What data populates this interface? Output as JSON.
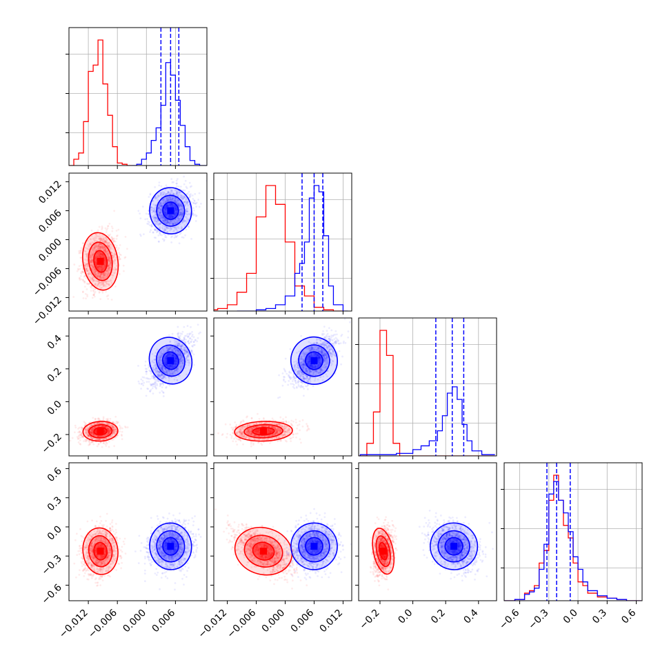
{
  "chart_data": {
    "type": "corner",
    "parameters": 4,
    "colors": {
      "red_series": "#ff0000",
      "blue_series": "#0000ff"
    },
    "series": [
      {
        "color": "#ff0000",
        "means": [
          -0.0095,
          -0.0045,
          -0.18,
          -0.25
        ],
        "sigmas": [
          0.0015,
          0.0025,
          0.025,
          0.1
        ],
        "histograms": [
          {
            "edges": [
              -0.016,
              -0.015,
              -0.014,
              -0.013,
              -0.012,
              -0.011,
              -0.01,
              -0.009,
              -0.008,
              -0.007,
              -0.006,
              -0.005,
              -0.004,
              -0.003
            ],
            "counts": [
              0,
              0.05,
              0.1,
              0.35,
              0.75,
              0.8,
              1.0,
              0.65,
              0.4,
              0.15,
              0.02,
              0.01,
              0
            ]
          },
          {
            "edges": [
              -0.018,
              -0.016,
              -0.014,
              -0.012,
              -0.01,
              -0.008,
              -0.006,
              -0.004,
              -0.002,
              0.0,
              0.002,
              0.004,
              0.006,
              0.008,
              0.01,
              0.012
            ],
            "counts": [
              0,
              0.01,
              0.02,
              0.05,
              0.15,
              0.3,
              0.75,
              1.0,
              0.85,
              0.55,
              0.2,
              0.12,
              0.03,
              0.01,
              0
            ]
          },
          {
            "edges": [
              -0.42,
              -0.28,
              -0.24,
              -0.2,
              -0.16,
              -0.12,
              -0.08,
              0.5
            ],
            "counts": [
              0,
              0.1,
              0.35,
              1.0,
              0.8,
              0.1,
              0
            ]
          },
          {
            "edges": [
              -0.8,
              -0.65,
              -0.55,
              -0.5,
              -0.45,
              -0.4,
              -0.35,
              -0.3,
              -0.25,
              -0.2,
              -0.15,
              -0.1,
              -0.05,
              0.0,
              0.05,
              0.1,
              0.2,
              0.3,
              0.4,
              0.5,
              0.65
            ],
            "counts": [
              0,
              0.01,
              0.06,
              0.08,
              0.12,
              0.3,
              0.4,
              0.8,
              1.0,
              0.8,
              0.6,
              0.5,
              0.3,
              0.15,
              0.12,
              0.06,
              0.03,
              0.02,
              0.01,
              0
            ]
          }
        ]
      },
      {
        "color": "#0000ff",
        "means": [
          0.005,
          0.006,
          0.25,
          -0.2
        ],
        "sigmas": [
          0.0018,
          0.002,
          0.06,
          0.1
        ],
        "quantiles": [
          [
            0.003,
            0.005,
            0.0067
          ],
          [
            0.0035,
            0.006,
            0.0078
          ],
          [
            0.14,
            0.24,
            0.31
          ],
          [
            -0.32,
            -0.22,
            -0.08
          ]
        ],
        "histograms": [
          {
            "edges": [
              -0.003,
              -0.002,
              -0.001,
              0.0,
              0.001,
              0.002,
              0.003,
              0.004,
              0.005,
              0.006,
              0.007,
              0.008,
              0.009,
              0.01,
              0.011,
              0.0125
            ],
            "counts": [
              0,
              0.01,
              0.05,
              0.1,
              0.2,
              0.3,
              0.48,
              0.82,
              0.72,
              0.52,
              0.32,
              0.15,
              0.04,
              0.01,
              0
            ]
          },
          {
            "edges": [
              -0.01,
              -0.006,
              -0.004,
              -0.002,
              0.0,
              0.002,
              0.003,
              0.004,
              0.005,
              0.006,
              0.007,
              0.008,
              0.009,
              0.01,
              0.012,
              0.013
            ],
            "counts": [
              0,
              0.01,
              0.02,
              0.05,
              0.12,
              0.3,
              0.38,
              0.55,
              0.9,
              1.0,
              0.95,
              0.6,
              0.2,
              0.05,
              0
            ]
          },
          {
            "edges": [
              -0.32,
              -0.1,
              0.0,
              0.05,
              0.1,
              0.15,
              0.18,
              0.21,
              0.24,
              0.27,
              0.3,
              0.33,
              0.36,
              0.42,
              0.5
            ],
            "counts": [
              0.01,
              0.02,
              0.05,
              0.08,
              0.12,
              0.2,
              0.32,
              0.5,
              0.55,
              0.45,
              0.25,
              0.12,
              0.04,
              0.01
            ]
          },
          {
            "edges": [
              -0.8,
              -0.65,
              -0.55,
              -0.5,
              -0.45,
              -0.4,
              -0.35,
              -0.3,
              -0.25,
              -0.2,
              -0.15,
              -0.1,
              -0.05,
              0.0,
              0.05,
              0.1,
              0.2,
              0.3,
              0.4,
              0.5,
              0.65
            ],
            "counts": [
              0,
              0.01,
              0.05,
              0.07,
              0.1,
              0.25,
              0.45,
              0.85,
              0.95,
              0.8,
              0.7,
              0.55,
              0.35,
              0.25,
              0.15,
              0.08,
              0.04,
              0.02,
              0.01,
              0
            ]
          }
        ]
      }
    ],
    "axes": [
      {
        "range": [
          -0.016,
          0.0125
        ],
        "ticks": [
          -0.012,
          -0.006,
          0.0,
          0.006
        ],
        "tick_labels": [
          "−0.012",
          "−0.006",
          "0.000",
          "0.006"
        ]
      },
      {
        "range": [
          -0.0148,
          0.0138
        ],
        "ticks": [
          -0.012,
          -0.006,
          0.0,
          0.006,
          0.012
        ],
        "tick_labels": [
          "−0.012",
          "−0.006",
          "0.000",
          "0.006",
          "0.012"
        ]
      },
      {
        "range": [
          -0.33,
          0.51
        ],
        "ticks": [
          -0.2,
          0.0,
          0.2,
          0.4
        ],
        "tick_labels": [
          "−0.2",
          "0.0",
          "0.2",
          "0.4"
        ]
      },
      {
        "range": [
          -0.76,
          0.66
        ],
        "ticks": [
          -0.6,
          -0.3,
          0.0,
          0.3,
          0.6
        ],
        "tick_labels": [
          "−0.6",
          "−0.3",
          "0.0",
          "0.3",
          "0.6"
        ]
      }
    ],
    "grid": true,
    "contour_levels": [
      0.39,
      0.86,
      0.99
    ]
  }
}
